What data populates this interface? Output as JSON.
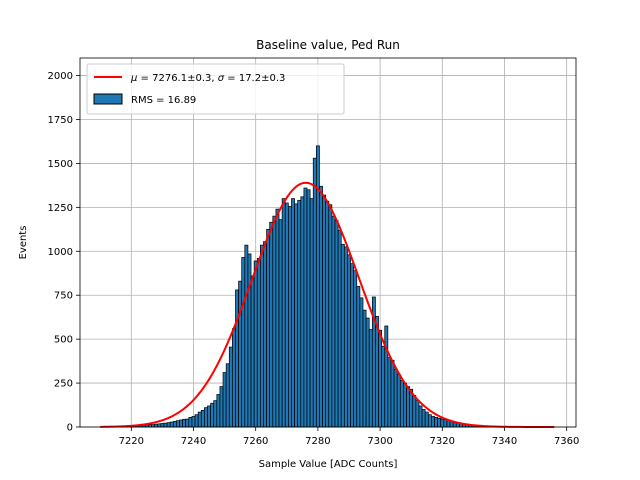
{
  "chart_data": {
    "type": "bar",
    "title": "Baseline value, Ped Run",
    "xlabel": "Sample Value [ADC Counts]",
    "ylabel": "Events",
    "xlim": [
      7203.5,
      7363
    ],
    "ylim": [
      0,
      2100
    ],
    "grid": true,
    "legend_position": "top-left",
    "x_ticks": [
      7220,
      7240,
      7260,
      7280,
      7300,
      7320,
      7340,
      7360
    ],
    "y_ticks": [
      0,
      250,
      500,
      750,
      1000,
      1250,
      1500,
      1750,
      2000
    ],
    "colors": {
      "bars": "#1f77b4",
      "bar_edge": "#000000",
      "fit": "#ff0000",
      "grid": "#b0b0b0"
    },
    "histogram": {
      "name": "RMS = 16.89",
      "bin_width": 1,
      "bins": [
        [
          7211,
          1
        ],
        [
          7212,
          1
        ],
        [
          7213,
          2
        ],
        [
          7214,
          2
        ],
        [
          7215,
          2
        ],
        [
          7216,
          3
        ],
        [
          7217,
          3
        ],
        [
          7218,
          4
        ],
        [
          7219,
          5
        ],
        [
          7220,
          6
        ],
        [
          7221,
          7
        ],
        [
          7222,
          8
        ],
        [
          7223,
          9
        ],
        [
          7224,
          10
        ],
        [
          7225,
          12
        ],
        [
          7226,
          13
        ],
        [
          7227,
          14
        ],
        [
          7228,
          16
        ],
        [
          7229,
          18
        ],
        [
          7230,
          20
        ],
        [
          7231,
          22
        ],
        [
          7232,
          25
        ],
        [
          7233,
          28
        ],
        [
          7234,
          32
        ],
        [
          7235,
          36
        ],
        [
          7236,
          40
        ],
        [
          7237,
          44
        ],
        [
          7238,
          45
        ],
        [
          7239,
          55
        ],
        [
          7240,
          60
        ],
        [
          7241,
          70
        ],
        [
          7242,
          85
        ],
        [
          7243,
          95
        ],
        [
          7244,
          110
        ],
        [
          7245,
          120
        ],
        [
          7246,
          135
        ],
        [
          7247,
          150
        ],
        [
          7248,
          185
        ],
        [
          7249,
          230
        ],
        [
          7250,
          310
        ],
        [
          7251,
          360
        ],
        [
          7252,
          455
        ],
        [
          7253,
          560
        ],
        [
          7254,
          780
        ],
        [
          7255,
          830
        ],
        [
          7256,
          965
        ],
        [
          7257,
          1035
        ],
        [
          7258,
          985
        ],
        [
          7259,
          860
        ],
        [
          7260,
          945
        ],
        [
          7261,
          960
        ],
        [
          7262,
          1035
        ],
        [
          7263,
          1055
        ],
        [
          7264,
          1125
        ],
        [
          7265,
          1165
        ],
        [
          7266,
          1200
        ],
        [
          7267,
          1240
        ],
        [
          7268,
          1180
        ],
        [
          7269,
          1300
        ],
        [
          7270,
          1275
        ],
        [
          7271,
          1255
        ],
        [
          7272,
          1300
        ],
        [
          7273,
          1270
        ],
        [
          7274,
          1290
        ],
        [
          7275,
          1310
        ],
        [
          7276,
          1360
        ],
        [
          7277,
          1350
        ],
        [
          7278,
          1300
        ],
        [
          7279,
          1530
        ],
        [
          7280,
          1600
        ],
        [
          7281,
          1370
        ],
        [
          7282,
          1320
        ],
        [
          7283,
          1285
        ],
        [
          7284,
          1265
        ],
        [
          7285,
          1200
        ],
        [
          7286,
          1175
        ],
        [
          7287,
          1120
        ],
        [
          7288,
          1040
        ],
        [
          7289,
          1025
        ],
        [
          7290,
          980
        ],
        [
          7291,
          930
        ],
        [
          7292,
          890
        ],
        [
          7293,
          800
        ],
        [
          7294,
          735
        ],
        [
          7295,
          665
        ],
        [
          7296,
          620
        ],
        [
          7297,
          555
        ],
        [
          7298,
          740
        ],
        [
          7299,
          630
        ],
        [
          7300,
          550
        ],
        [
          7301,
          460
        ],
        [
          7302,
          575
        ],
        [
          7303,
          395
        ],
        [
          7304,
          380
        ],
        [
          7305,
          330
        ],
        [
          7306,
          300
        ],
        [
          7307,
          265
        ],
        [
          7308,
          250
        ],
        [
          7309,
          230
        ],
        [
          7310,
          215
        ],
        [
          7311,
          180
        ],
        [
          7312,
          150
        ],
        [
          7313,
          120
        ],
        [
          7314,
          100
        ],
        [
          7315,
          85
        ],
        [
          7316,
          70
        ],
        [
          7317,
          60
        ],
        [
          7318,
          55
        ],
        [
          7319,
          50
        ],
        [
          7320,
          45
        ],
        [
          7321,
          42
        ],
        [
          7322,
          38
        ],
        [
          7323,
          34
        ],
        [
          7324,
          30
        ],
        [
          7325,
          26
        ],
        [
          7326,
          22
        ],
        [
          7327,
          19
        ],
        [
          7328,
          16
        ],
        [
          7329,
          13
        ],
        [
          7330,
          10
        ],
        [
          7331,
          8
        ],
        [
          7332,
          6
        ],
        [
          7333,
          5
        ],
        [
          7334,
          4
        ],
        [
          7335,
          3
        ],
        [
          7336,
          2
        ],
        [
          7337,
          2
        ],
        [
          7338,
          1
        ],
        [
          7339,
          1
        ],
        [
          7340,
          1
        ]
      ]
    },
    "fit": {
      "name": "μ = 7276.1±0.3, σ = 17.2±0.3",
      "label_mu": "μ",
      "label_mu_value": " = 7276.1±0.3, ",
      "label_sigma": "σ",
      "label_sigma_value": " = 17.2±0.3",
      "type": "gaussian",
      "mu": 7276.1,
      "sigma": 17.2,
      "amplitude": 1390,
      "x_range": [
        7210,
        7356
      ]
    }
  }
}
